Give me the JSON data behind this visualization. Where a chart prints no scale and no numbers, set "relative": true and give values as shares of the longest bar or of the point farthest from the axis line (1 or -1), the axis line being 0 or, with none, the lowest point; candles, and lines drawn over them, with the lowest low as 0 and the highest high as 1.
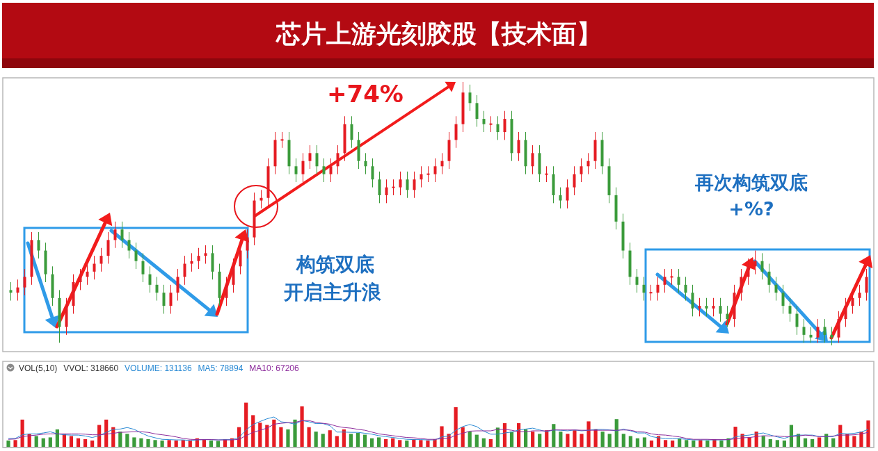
{
  "chart_data": [
    {
      "type": "candlestick",
      "title": "芯片上游光刻胶股【技术面】",
      "relative": true,
      "annotations": [
        "+74%",
        "构筑双底",
        "开启主升浪",
        "再次构筑双底",
        "+%?"
      ],
      "categories": [
        null,
        null,
        null,
        null,
        null,
        null,
        null,
        null,
        null,
        null,
        null,
        null,
        null,
        null,
        null,
        null,
        null,
        null,
        null,
        null,
        null,
        null,
        null,
        null,
        null,
        null,
        null,
        null,
        null,
        null,
        null,
        null,
        null,
        null,
        null,
        null,
        null,
        null,
        null,
        null,
        null,
        null,
        null,
        null,
        null,
        null,
        null,
        null,
        null,
        null,
        null,
        null,
        null,
        null,
        null,
        null,
        null,
        null,
        null,
        null,
        null,
        null,
        null,
        null,
        null,
        null,
        null,
        null,
        null,
        null,
        null,
        null,
        null,
        null,
        null,
        null,
        null,
        null,
        null,
        null,
        null,
        null,
        null,
        null,
        null,
        null,
        null,
        null,
        null,
        null,
        null,
        null,
        null,
        null,
        null,
        null,
        null,
        null,
        null,
        null,
        null,
        null,
        null,
        null,
        null,
        null,
        null,
        null,
        null,
        null,
        null,
        null,
        null,
        null,
        null,
        null,
        null,
        null,
        null,
        null,
        null,
        null,
        null,
        null
      ],
      "ohlc": [
        [
          0.21,
          0.24,
          0.17,
          0.2
        ],
        [
          0.2,
          0.25,
          0.17,
          0.22
        ],
        [
          0.22,
          0.29,
          0.19,
          0.26
        ],
        [
          0.26,
          0.43,
          0.23,
          0.4
        ],
        [
          0.4,
          0.43,
          0.33,
          0.36
        ],
        [
          0.36,
          0.39,
          0.24,
          0.27
        ],
        [
          0.27,
          0.3,
          0.15,
          0.18
        ],
        [
          0.18,
          0.21,
          0.01,
          0.07
        ],
        [
          0.07,
          0.18,
          0.04,
          0.15
        ],
        [
          0.15,
          0.27,
          0.12,
          0.24
        ],
        [
          0.24,
          0.29,
          0.21,
          0.26
        ],
        [
          0.26,
          0.31,
          0.23,
          0.28
        ],
        [
          0.28,
          0.34,
          0.25,
          0.31
        ],
        [
          0.31,
          0.37,
          0.28,
          0.34
        ],
        [
          0.34,
          0.43,
          0.31,
          0.4
        ],
        [
          0.4,
          0.47,
          0.37,
          0.44
        ],
        [
          0.44,
          0.47,
          0.37,
          0.4
        ],
        [
          0.4,
          0.43,
          0.33,
          0.36
        ],
        [
          0.36,
          0.39,
          0.29,
          0.32
        ],
        [
          0.32,
          0.35,
          0.24,
          0.27
        ],
        [
          0.27,
          0.3,
          0.2,
          0.23
        ],
        [
          0.23,
          0.26,
          0.17,
          0.2
        ],
        [
          0.2,
          0.23,
          0.12,
          0.15
        ],
        [
          0.15,
          0.23,
          0.12,
          0.2
        ],
        [
          0.2,
          0.29,
          0.17,
          0.26
        ],
        [
          0.26,
          0.34,
          0.23,
          0.31
        ],
        [
          0.31,
          0.35,
          0.28,
          0.32
        ],
        [
          0.32,
          0.37,
          0.29,
          0.34
        ],
        [
          0.34,
          0.38,
          0.31,
          0.35
        ],
        [
          0.35,
          0.38,
          0.25,
          0.28
        ],
        [
          0.28,
          0.31,
          0.15,
          0.18
        ],
        [
          0.18,
          0.26,
          0.15,
          0.23
        ],
        [
          0.23,
          0.33,
          0.2,
          0.3
        ],
        [
          0.3,
          0.39,
          0.27,
          0.36
        ],
        [
          0.36,
          0.44,
          0.33,
          0.41
        ],
        [
          0.41,
          0.58,
          0.38,
          0.55
        ],
        [
          0.55,
          0.59,
          0.52,
          0.56
        ],
        [
          0.56,
          0.71,
          0.53,
          0.68
        ],
        [
          0.68,
          0.81,
          0.65,
          0.78
        ],
        [
          0.78,
          0.81,
          0.75,
          0.78
        ],
        [
          0.78,
          0.81,
          0.65,
          0.68
        ],
        [
          0.68,
          0.71,
          0.62,
          0.65
        ],
        [
          0.65,
          0.73,
          0.62,
          0.7
        ],
        [
          0.7,
          0.76,
          0.67,
          0.73
        ],
        [
          0.73,
          0.76,
          0.65,
          0.68
        ],
        [
          0.68,
          0.71,
          0.62,
          0.65
        ],
        [
          0.65,
          0.71,
          0.62,
          0.68
        ],
        [
          0.68,
          0.76,
          0.65,
          0.73
        ],
        [
          0.73,
          0.87,
          0.7,
          0.84
        ],
        [
          0.84,
          0.87,
          0.75,
          0.78
        ],
        [
          0.78,
          0.81,
          0.67,
          0.7
        ],
        [
          0.7,
          0.73,
          0.65,
          0.68
        ],
        [
          0.68,
          0.71,
          0.6,
          0.63
        ],
        [
          0.63,
          0.66,
          0.54,
          0.57
        ],
        [
          0.57,
          0.63,
          0.54,
          0.6
        ],
        [
          0.6,
          0.63,
          0.57,
          0.6
        ],
        [
          0.6,
          0.66,
          0.57,
          0.63
        ],
        [
          0.63,
          0.66,
          0.56,
          0.59
        ],
        [
          0.59,
          0.66,
          0.56,
          0.63
        ],
        [
          0.63,
          0.68,
          0.6,
          0.65
        ],
        [
          0.65,
          0.68,
          0.62,
          0.65
        ],
        [
          0.65,
          0.71,
          0.62,
          0.68
        ],
        [
          0.68,
          0.73,
          0.65,
          0.7
        ],
        [
          0.7,
          0.81,
          0.67,
          0.78
        ],
        [
          0.78,
          0.87,
          0.75,
          0.84
        ],
        [
          0.84,
          1,
          0.81,
          0.96
        ],
        [
          0.96,
          0.99,
          0.89,
          0.92
        ],
        [
          0.92,
          0.95,
          0.83,
          0.86
        ],
        [
          0.86,
          0.89,
          0.81,
          0.84
        ],
        [
          0.84,
          0.87,
          0.81,
          0.84
        ],
        [
          0.84,
          0.87,
          0.78,
          0.81
        ],
        [
          0.81,
          0.89,
          0.78,
          0.86
        ],
        [
          0.86,
          0.89,
          0.7,
          0.73
        ],
        [
          0.73,
          0.81,
          0.7,
          0.78
        ],
        [
          0.78,
          0.81,
          0.65,
          0.68
        ],
        [
          0.68,
          0.76,
          0.65,
          0.73
        ],
        [
          0.73,
          0.76,
          0.62,
          0.65
        ],
        [
          0.65,
          0.68,
          0.62,
          0.65
        ],
        [
          0.65,
          0.68,
          0.54,
          0.57
        ],
        [
          0.57,
          0.6,
          0.52,
          0.55
        ],
        [
          0.55,
          0.63,
          0.52,
          0.6
        ],
        [
          0.6,
          0.68,
          0.57,
          0.65
        ],
        [
          0.65,
          0.71,
          0.62,
          0.68
        ],
        [
          0.68,
          0.73,
          0.65,
          0.7
        ],
        [
          0.7,
          0.81,
          0.67,
          0.78
        ],
        [
          0.78,
          0.81,
          0.65,
          0.68
        ],
        [
          0.68,
          0.71,
          0.54,
          0.57
        ],
        [
          0.57,
          0.6,
          0.44,
          0.47
        ],
        [
          0.47,
          0.5,
          0.33,
          0.36
        ],
        [
          0.36,
          0.39,
          0.23,
          0.26
        ],
        [
          0.26,
          0.29,
          0.2,
          0.23
        ],
        [
          0.23,
          0.26,
          0.17,
          0.2
        ],
        [
          0.2,
          0.23,
          0.17,
          0.2
        ],
        [
          0.2,
          0.26,
          0.17,
          0.23
        ],
        [
          0.23,
          0.29,
          0.2,
          0.26
        ],
        [
          0.26,
          0.29,
          0.23,
          0.26
        ],
        [
          0.26,
          0.29,
          0.2,
          0.23
        ],
        [
          0.23,
          0.26,
          0.17,
          0.2
        ],
        [
          0.2,
          0.23,
          0.11,
          0.14
        ],
        [
          0.14,
          0.18,
          0.11,
          0.15
        ],
        [
          0.15,
          0.18,
          0.11,
          0.14
        ],
        [
          0.14,
          0.18,
          0.11,
          0.15
        ],
        [
          0.15,
          0.18,
          0.09,
          0.12
        ],
        [
          0.12,
          0.15,
          0.07,
          0.1
        ],
        [
          0.1,
          0.23,
          0.07,
          0.2
        ],
        [
          0.2,
          0.29,
          0.17,
          0.26
        ],
        [
          0.26,
          0.33,
          0.23,
          0.3
        ],
        [
          0.3,
          0.36,
          0.27,
          0.32
        ],
        [
          0.32,
          0.35,
          0.25,
          0.28
        ],
        [
          0.28,
          0.31,
          0.2,
          0.23
        ],
        [
          0.23,
          0.26,
          0.17,
          0.2
        ],
        [
          0.2,
          0.23,
          0.12,
          0.15
        ],
        [
          0.15,
          0.18,
          0.09,
          0.12
        ],
        [
          0.12,
          0.15,
          0.04,
          0.07
        ],
        [
          0.07,
          0.1,
          0.01,
          0.04
        ],
        [
          0.04,
          0.07,
          0.01,
          0.03
        ],
        [
          0.03,
          0.1,
          0.01,
          0.07
        ],
        [
          0.07,
          0.1,
          0.01,
          0.04
        ],
        [
          0.04,
          0.07,
          0,
          0.03
        ],
        [
          0.03,
          0.13,
          0.01,
          0.1
        ],
        [
          0.1,
          0.18,
          0.07,
          0.15
        ],
        [
          0.15,
          0.21,
          0.12,
          0.18
        ],
        [
          0.18,
          0.23,
          0.15,
          0.2
        ],
        [
          0.2,
          0.29,
          0.17,
          0.26
        ]
      ]
    },
    {
      "type": "bar",
      "relative": true,
      "annotations": [
        "VOL(5,10)",
        "VVOL: 318660",
        "VOLUME: 131136",
        "MA5: 78894",
        "MA10: 67206"
      ],
      "categories": [
        null,
        null,
        null,
        null,
        null,
        null,
        null,
        null,
        null,
        null,
        null,
        null,
        null,
        null,
        null,
        null,
        null,
        null,
        null,
        null,
        null,
        null,
        null,
        null,
        null,
        null,
        null,
        null,
        null,
        null,
        null,
        null,
        null,
        null,
        null,
        null,
        null,
        null,
        null,
        null,
        null,
        null,
        null,
        null,
        null,
        null,
        null,
        null,
        null,
        null,
        null,
        null,
        null,
        null,
        null,
        null,
        null,
        null,
        null,
        null,
        null,
        null,
        null,
        null,
        null,
        null,
        null,
        null,
        null,
        null,
        null,
        null,
        null,
        null,
        null,
        null,
        null,
        null,
        null,
        null,
        null,
        null,
        null,
        null,
        null,
        null,
        null,
        null,
        null,
        null,
        null,
        null,
        null,
        null,
        null,
        null,
        null,
        null,
        null,
        null,
        null,
        null,
        null,
        null,
        null,
        null,
        null,
        null,
        null,
        null,
        null,
        null,
        null,
        null,
        null,
        null,
        null,
        null,
        null,
        null,
        null,
        null,
        null,
        null
      ],
      "values": [
        0.15,
        0.16,
        0.62,
        0.3,
        0.25,
        0.2,
        0.22,
        0.4,
        0.3,
        0.25,
        0.2,
        0.18,
        0.15,
        0.5,
        0.62,
        0.45,
        0.35,
        0.3,
        0.22,
        0.2,
        0.18,
        0.16,
        0.15,
        0.16,
        0.15,
        0.16,
        0.15,
        0.2,
        0.18,
        0.15,
        0.14,
        0.18,
        0.2,
        0.45,
        1,
        0.72,
        0.55,
        0.5,
        0.62,
        0.45,
        0.4,
        0.62,
        0.92,
        0.45,
        0.35,
        0.3,
        0.38,
        0.25,
        0.4,
        0.3,
        0.32,
        0.28,
        0.2,
        0.22,
        0.18,
        0.2,
        0.16,
        0.15,
        0.18,
        0.16,
        0.15,
        0.18,
        0.47,
        0.3,
        0.9,
        0.45,
        0.35,
        0.28,
        0.2,
        0.18,
        0.44,
        0.54,
        0.35,
        0.54,
        0.4,
        0.35,
        0.3,
        0.38,
        0.52,
        0.35,
        0.3,
        0.38,
        0.3,
        0.58,
        0.4,
        0.35,
        0.3,
        0.63,
        0.3,
        0.25,
        0.2,
        0.22,
        0.15,
        0.25,
        0.16,
        0.15,
        0.2,
        0.16,
        0.15,
        0.16,
        0.15,
        0.18,
        0.15,
        0.2,
        0.46,
        0.3,
        0.22,
        0.35,
        0.25,
        0.18,
        0.16,
        0.15,
        0.5,
        0.3,
        0.2,
        0.18,
        0.22,
        0.3,
        0.2,
        0.5,
        0.3,
        0.25,
        0.35,
        0.6
      ],
      "colors": [
        "#3b9b3b",
        "#e51c23",
        "#e51c23",
        "#e51c23",
        "#3b9b3b",
        "#3b9b3b",
        "#3b9b3b",
        "#3b9b3b",
        "#e51c23",
        "#e51c23",
        "#e51c23",
        "#e51c23",
        "#e51c23",
        "#e51c23",
        "#e51c23",
        "#e51c23",
        "#3b9b3b",
        "#3b9b3b",
        "#3b9b3b",
        "#3b9b3b",
        "#3b9b3b",
        "#3b9b3b",
        "#3b9b3b",
        "#e51c23",
        "#e51c23",
        "#e51c23",
        "#e51c23",
        "#e51c23",
        "#e51c23",
        "#3b9b3b",
        "#3b9b3b",
        "#e51c23",
        "#e51c23",
        "#e51c23",
        "#e51c23",
        "#e51c23",
        "#e51c23",
        "#e51c23",
        "#e51c23",
        "#e51c23",
        "#3b9b3b",
        "#3b9b3b",
        "#e51c23",
        "#e51c23",
        "#3b9b3b",
        "#3b9b3b",
        "#e51c23",
        "#e51c23",
        "#e51c23",
        "#3b9b3b",
        "#3b9b3b",
        "#3b9b3b",
        "#3b9b3b",
        "#3b9b3b",
        "#e51c23",
        "#e51c23",
        "#e51c23",
        "#3b9b3b",
        "#e51c23",
        "#e51c23",
        "#e51c23",
        "#e51c23",
        "#e51c23",
        "#e51c23",
        "#e51c23",
        "#e51c23",
        "#3b9b3b",
        "#3b9b3b",
        "#3b9b3b",
        "#e51c23",
        "#3b9b3b",
        "#e51c23",
        "#3b9b3b",
        "#e51c23",
        "#3b9b3b",
        "#e51c23",
        "#3b9b3b",
        "#e51c23",
        "#3b9b3b",
        "#3b9b3b",
        "#e51c23",
        "#e51c23",
        "#e51c23",
        "#e51c23",
        "#e51c23",
        "#3b9b3b",
        "#3b9b3b",
        "#3b9b3b",
        "#3b9b3b",
        "#3b9b3b",
        "#3b9b3b",
        "#3b9b3b",
        "#e51c23",
        "#e51c23",
        "#e51c23",
        "#e51c23",
        "#3b9b3b",
        "#3b9b3b",
        "#3b9b3b",
        "#e51c23",
        "#3b9b3b",
        "#e51c23",
        "#3b9b3b",
        "#3b9b3b",
        "#e51c23",
        "#e51c23",
        "#e51c23",
        "#e51c23",
        "#3b9b3b",
        "#3b9b3b",
        "#3b9b3b",
        "#3b9b3b",
        "#3b9b3b",
        "#3b9b3b",
        "#3b9b3b",
        "#3b9b3b",
        "#e51c23",
        "#3b9b3b",
        "#3b9b3b",
        "#e51c23",
        "#e51c23",
        "#e51c23",
        "#e51c23",
        "#e51c23"
      ]
    },
    {
      "type": "line",
      "relative": true,
      "categories": [
        null,
        null,
        null,
        null,
        null,
        null,
        null,
        null,
        null,
        null,
        null,
        null,
        null,
        null,
        null,
        null,
        null,
        null,
        null,
        null,
        null,
        null,
        null,
        null,
        null,
        null,
        null,
        null,
        null,
        null,
        null,
        null,
        null,
        null,
        null,
        null,
        null,
        null,
        null,
        null,
        null,
        null,
        null,
        null,
        null,
        null,
        null,
        null,
        null,
        null,
        null,
        null,
        null,
        null,
        null,
        null,
        null,
        null,
        null,
        null,
        null,
        null,
        null,
        null,
        null,
        null,
        null,
        null,
        null,
        null,
        null,
        null,
        null,
        null,
        null,
        null,
        null,
        null,
        null,
        null,
        null,
        null,
        null,
        null,
        null,
        null,
        null,
        null,
        null,
        null,
        null,
        null,
        null,
        null,
        null,
        null,
        null,
        null,
        null,
        null,
        null,
        null,
        null,
        null,
        null,
        null,
        null,
        null,
        null,
        null,
        null,
        null,
        null,
        null,
        null,
        null,
        null,
        null,
        null,
        null,
        null,
        null,
        null,
        null
      ],
      "series": [
        {
          "color": "#2a8ad4",
          "values": [
            0.29,
            0.29,
            0.41,
            0.44,
            0.44,
            0.47,
            0.51,
            0.44,
            0.41,
            0.4,
            0.4,
            0.37,
            0.32,
            0.38,
            0.49,
            0.59,
            0.6,
            0.65,
            0.59,
            0.47,
            0.37,
            0.31,
            0.26,
            0.25,
            0.24,
            0.24,
            0.22,
            0.24,
            0.25,
            0.25,
            0.24,
            0.25,
            0.25,
            0.32,
            0.57,
            0.75,
            0.85,
            0.94,
            1,
            0.84,
            0.81,
            0.76,
            0.88,
            0.84,
            0.78,
            0.78,
            0.71,
            0.5,
            0.5,
            0.49,
            0.49,
            0.46,
            0.43,
            0.38,
            0.35,
            0.32,
            0.29,
            0.26,
            0.25,
            0.25,
            0.24,
            0.24,
            0.34,
            0.37,
            0.56,
            0.68,
            0.75,
            0.68,
            0.53,
            0.43,
            0.43,
            0.47,
            0.5,
            0.57,
            0.6,
            0.63,
            0.57,
            0.51,
            0.57,
            0.56,
            0.54,
            0.57,
            0.54,
            0.56,
            0.59,
            0.59,
            0.57,
            0.54,
            0.6,
            0.54,
            0.47,
            0.47,
            0.35,
            0.31,
            0.29,
            0.28,
            0.28,
            0.26,
            0.24,
            0.24,
            0.24,
            0.24,
            0.24,
            0.25,
            0.34,
            0.38,
            0.4,
            0.44,
            0.47,
            0.4,
            0.34,
            0.29,
            0.37,
            0.4,
            0.4,
            0.4,
            0.35,
            0.35,
            0.35,
            0.46,
            0.44,
            0.46,
            0.5,
            0.59
          ]
        },
        {
          "color": "#8b2a9b",
          "values": [
            0.26,
            0.27,
            0.35,
            0.38,
            0.4,
            0.43,
            0.44,
            0.44,
            0.44,
            0.44,
            0.44,
            0.43,
            0.41,
            0.41,
            0.43,
            0.46,
            0.49,
            0.5,
            0.51,
            0.51,
            0.49,
            0.44,
            0.41,
            0.38,
            0.34,
            0.29,
            0.26,
            0.25,
            0.25,
            0.25,
            0.24,
            0.24,
            0.24,
            0.26,
            0.38,
            0.49,
            0.56,
            0.63,
            0.76,
            0.79,
            0.81,
            0.82,
            0.88,
            0.88,
            0.82,
            0.79,
            0.76,
            0.69,
            0.65,
            0.63,
            0.59,
            0.56,
            0.5,
            0.44,
            0.41,
            0.38,
            0.35,
            0.32,
            0.31,
            0.29,
            0.26,
            0.26,
            0.28,
            0.29,
            0.4,
            0.46,
            0.53,
            0.54,
            0.54,
            0.54,
            0.59,
            0.59,
            0.56,
            0.51,
            0.51,
            0.54,
            0.54,
            0.54,
            0.57,
            0.57,
            0.57,
            0.57,
            0.56,
            0.56,
            0.56,
            0.56,
            0.56,
            0.56,
            0.57,
            0.56,
            0.51,
            0.5,
            0.44,
            0.41,
            0.4,
            0.37,
            0.34,
            0.29,
            0.26,
            0.26,
            0.26,
            0.25,
            0.25,
            0.25,
            0.28,
            0.31,
            0.32,
            0.35,
            0.38,
            0.37,
            0.37,
            0.35,
            0.35,
            0.37,
            0.4,
            0.38,
            0.35,
            0.35,
            0.37,
            0.4,
            0.4,
            0.41,
            0.44,
            0.49
          ]
        }
      ]
    }
  ]
}
